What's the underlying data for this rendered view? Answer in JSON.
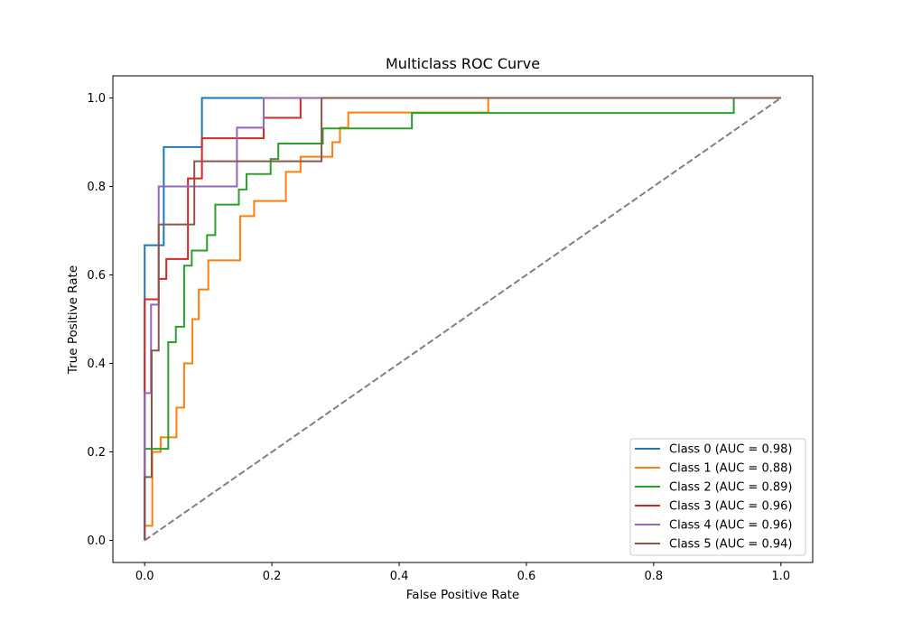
{
  "chart_data": {
    "type": "line",
    "title": "Multiclass ROC Curve",
    "xlabel": "False Positive Rate",
    "ylabel": "True Positive Rate",
    "xlim": [
      -0.05,
      1.05
    ],
    "ylim": [
      -0.05,
      1.05
    ],
    "xticks": [
      "0.0",
      "0.2",
      "0.4",
      "0.6",
      "0.8",
      "1.0"
    ],
    "yticks": [
      "0.0",
      "0.2",
      "0.4",
      "0.6",
      "0.8",
      "1.0"
    ],
    "grid": false,
    "legend_position": "lower right",
    "series": [
      {
        "name": "Class 0 (AUC = 0.98)",
        "color": "#1f77b4",
        "x": [
          0.0,
          0.0,
          0.0,
          0.03,
          0.03,
          0.09,
          0.09,
          1.0
        ],
        "y": [
          0.0,
          0.333,
          0.667,
          0.667,
          0.889,
          0.889,
          1.0,
          1.0
        ]
      },
      {
        "name": "Class 1 (AUC = 0.88)",
        "color": "#ff7f0e",
        "x": [
          0.0,
          0.0,
          0.012,
          0.012,
          0.025,
          0.025,
          0.05,
          0.05,
          0.062,
          0.062,
          0.075,
          0.075,
          0.085,
          0.085,
          0.1,
          0.1,
          0.15,
          0.15,
          0.172,
          0.172,
          0.222,
          0.222,
          0.245,
          0.245,
          0.295,
          0.295,
          0.307,
          0.307,
          0.32,
          0.32,
          0.42,
          0.42,
          0.54,
          0.54,
          1.0
        ],
        "y": [
          0.0,
          0.033,
          0.033,
          0.2,
          0.2,
          0.233,
          0.233,
          0.3,
          0.3,
          0.4,
          0.4,
          0.5,
          0.5,
          0.567,
          0.567,
          0.633,
          0.633,
          0.733,
          0.733,
          0.767,
          0.767,
          0.833,
          0.833,
          0.867,
          0.867,
          0.9,
          0.9,
          0.933,
          0.933,
          0.967,
          0.967,
          0.967,
          0.967,
          1.0,
          1.0
        ]
      },
      {
        "name": "Class 2 (AUC = 0.89)",
        "color": "#2ca02c",
        "x": [
          0.0,
          0.0,
          0.037,
          0.037,
          0.049,
          0.049,
          0.062,
          0.062,
          0.074,
          0.074,
          0.098,
          0.098,
          0.111,
          0.111,
          0.148,
          0.148,
          0.16,
          0.16,
          0.198,
          0.198,
          0.21,
          0.21,
          0.28,
          0.28,
          0.42,
          0.42,
          0.926,
          0.926,
          1.0
        ],
        "y": [
          0.0,
          0.207,
          0.207,
          0.448,
          0.448,
          0.483,
          0.483,
          0.621,
          0.621,
          0.655,
          0.655,
          0.69,
          0.69,
          0.759,
          0.759,
          0.793,
          0.793,
          0.828,
          0.828,
          0.862,
          0.862,
          0.897,
          0.897,
          0.931,
          0.931,
          0.966,
          0.966,
          1.0,
          1.0
        ]
      },
      {
        "name": "Class 3 (AUC = 0.96)",
        "color": "#d62728",
        "x": [
          0.0,
          0.0,
          0.022,
          0.022,
          0.034,
          0.034,
          0.068,
          0.068,
          0.09,
          0.09,
          0.187,
          0.187,
          0.245,
          0.245,
          1.0
        ],
        "y": [
          0.0,
          0.545,
          0.545,
          0.591,
          0.591,
          0.636,
          0.636,
          0.818,
          0.818,
          0.909,
          0.909,
          0.955,
          0.955,
          1.0,
          1.0
        ]
      },
      {
        "name": "Class 4 (AUC = 0.96)",
        "color": "#9467bd",
        "x": [
          0.0,
          0.0,
          0.01,
          0.01,
          0.022,
          0.022,
          0.145,
          0.145,
          0.187,
          0.187,
          1.0
        ],
        "y": [
          0.0,
          0.333,
          0.333,
          0.533,
          0.533,
          0.8,
          0.8,
          0.933,
          0.933,
          1.0,
          1.0
        ]
      },
      {
        "name": "Class 5 (AUC = 0.94)",
        "color": "#8c564b",
        "x": [
          0.0,
          0.0,
          0.011,
          0.011,
          0.022,
          0.022,
          0.078,
          0.078,
          0.278,
          0.278,
          1.0
        ],
        "y": [
          0.0,
          0.143,
          0.143,
          0.429,
          0.429,
          0.714,
          0.714,
          0.857,
          0.857,
          1.0,
          1.0
        ]
      }
    ],
    "reference_line": {
      "x": [
        0.0,
        1.0
      ],
      "y": [
        0.0,
        1.0
      ],
      "color": "#808080",
      "style": "dashed"
    }
  }
}
